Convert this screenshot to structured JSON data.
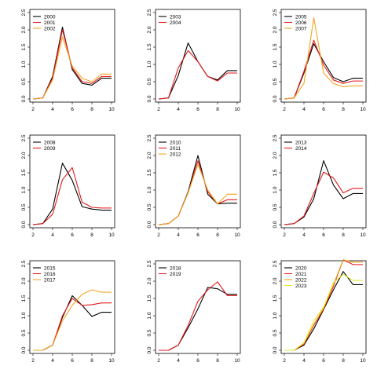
{
  "chart_data": [
    {
      "type": "line",
      "legend_position": "top-left",
      "xlim": [
        2,
        10
      ],
      "ylim": [
        0,
        2.5
      ],
      "x": [
        2,
        3,
        4,
        5,
        6,
        7,
        8,
        9,
        10
      ],
      "x_ticks": [
        "2",
        "4",
        "6",
        "8",
        "10"
      ],
      "y_ticks": [
        "0.0",
        "0.5",
        "1.0",
        "1.5",
        "2.0",
        "2.5"
      ],
      "series": [
        {
          "name": "2000",
          "color": "#000000",
          "values": [
            0,
            0.03,
            0.65,
            2.08,
            0.85,
            0.45,
            0.4,
            0.6,
            0.6
          ]
        },
        {
          "name": "2001",
          "color": "#e31a1c",
          "values": [
            0,
            0.03,
            0.6,
            2.0,
            0.9,
            0.5,
            0.45,
            0.65,
            0.65
          ]
        },
        {
          "name": "2002",
          "color": "#f5a623",
          "values": [
            0,
            0.03,
            0.55,
            1.8,
            0.95,
            0.6,
            0.5,
            0.72,
            0.72
          ]
        }
      ]
    },
    {
      "type": "line",
      "legend_position": "top-left",
      "xlim": [
        2,
        10
      ],
      "ylim": [
        0,
        2.5
      ],
      "x": [
        2,
        3,
        4,
        5,
        6,
        7,
        8,
        9,
        10
      ],
      "x_ticks": [
        "2",
        "4",
        "6",
        "8",
        "10"
      ],
      "y_ticks": [
        "0.0",
        "0.5",
        "1.0",
        "1.5",
        "2.0",
        "2.5"
      ],
      "series": [
        {
          "name": "2003",
          "color": "#000000",
          "values": [
            0,
            0.03,
            0.68,
            1.62,
            1.08,
            0.65,
            0.55,
            0.82,
            0.82
          ]
        },
        {
          "name": "2004",
          "color": "#e31a1c",
          "values": [
            0,
            0.03,
            0.9,
            1.4,
            1.08,
            0.65,
            0.52,
            0.75,
            0.75
          ]
        }
      ]
    },
    {
      "type": "line",
      "legend_position": "top-left",
      "xlim": [
        2,
        10
      ],
      "ylim": [
        0,
        2.5
      ],
      "x": [
        2,
        3,
        4,
        5,
        6,
        7,
        8,
        9,
        10
      ],
      "x_ticks": [
        "2",
        "4",
        "6",
        "8",
        "10"
      ],
      "y_ticks": [
        "0.0",
        "0.5",
        "1.0",
        "1.5",
        "2.0",
        "2.5"
      ],
      "series": [
        {
          "name": "2005",
          "color": "#000000",
          "values": [
            0,
            0.03,
            0.75,
            1.6,
            1.08,
            0.62,
            0.5,
            0.6,
            0.6
          ]
        },
        {
          "name": "2006",
          "color": "#e31a1c",
          "values": [
            0,
            0.03,
            0.8,
            1.7,
            0.98,
            0.55,
            0.45,
            0.52,
            0.52
          ]
        },
        {
          "name": "2007",
          "color": "#f5a623",
          "values": [
            0,
            0.03,
            0.45,
            2.35,
            0.75,
            0.45,
            0.35,
            0.38,
            0.38
          ]
        }
      ]
    },
    {
      "type": "line",
      "legend_position": "top-left",
      "xlim": [
        2,
        10
      ],
      "ylim": [
        0,
        2.5
      ],
      "x": [
        2,
        3,
        4,
        5,
        6,
        7,
        8,
        9,
        10
      ],
      "x_ticks": [
        "2",
        "4",
        "6",
        "8",
        "10"
      ],
      "y_ticks": [
        "0.0",
        "0.5",
        "1.0",
        "1.5",
        "2.0",
        "2.5"
      ],
      "series": [
        {
          "name": "2008",
          "color": "#000000",
          "values": [
            0,
            0.03,
            0.45,
            1.78,
            1.28,
            0.52,
            0.45,
            0.42,
            0.42
          ]
        },
        {
          "name": "2009",
          "color": "#e31a1c",
          "values": [
            0,
            0.03,
            0.3,
            1.3,
            1.65,
            0.65,
            0.5,
            0.48,
            0.48
          ]
        }
      ]
    },
    {
      "type": "line",
      "legend_position": "top-left",
      "xlim": [
        2,
        10
      ],
      "ylim": [
        0,
        2.5
      ],
      "x": [
        2,
        3,
        4,
        5,
        6,
        7,
        8,
        9,
        10
      ],
      "x_ticks": [
        "2",
        "4",
        "6",
        "8",
        "10"
      ],
      "y_ticks": [
        "0.0",
        "0.5",
        "1.0",
        "1.5",
        "2.0",
        "2.5"
      ],
      "series": [
        {
          "name": "2010",
          "color": "#000000",
          "values": [
            0,
            0.03,
            0.25,
            0.95,
            2.0,
            0.88,
            0.6,
            0.62,
            0.62
          ]
        },
        {
          "name": "2011",
          "color": "#e31a1c",
          "values": [
            0,
            0.03,
            0.25,
            0.92,
            1.85,
            0.95,
            0.6,
            0.72,
            0.72
          ]
        },
        {
          "name": "2012",
          "color": "#f5a623",
          "values": [
            0,
            0.03,
            0.25,
            0.92,
            1.75,
            1.0,
            0.6,
            0.88,
            0.88
          ]
        }
      ]
    },
    {
      "type": "line",
      "legend_position": "top-left",
      "xlim": [
        2,
        10
      ],
      "ylim": [
        0,
        2.5
      ],
      "x": [
        2,
        3,
        4,
        5,
        6,
        7,
        8,
        9,
        10
      ],
      "x_ticks": [
        "2",
        "4",
        "6",
        "8",
        "10"
      ],
      "y_ticks": [
        "0.0",
        "0.5",
        "1.0",
        "1.5",
        "2.0",
        "2.5"
      ],
      "series": [
        {
          "name": "2013",
          "color": "#000000",
          "values": [
            0,
            0.03,
            0.22,
            0.75,
            1.85,
            1.15,
            0.75,
            0.9,
            0.9
          ]
        },
        {
          "name": "2014",
          "color": "#e31a1c",
          "values": [
            0,
            0.03,
            0.25,
            0.9,
            1.52,
            1.35,
            0.92,
            1.05,
            1.05
          ]
        }
      ]
    },
    {
      "type": "line",
      "legend_position": "top-left",
      "xlim": [
        2,
        10
      ],
      "ylim": [
        0,
        2.5
      ],
      "x": [
        2,
        3,
        4,
        5,
        6,
        7,
        8,
        9,
        10
      ],
      "x_ticks": [
        "2",
        "4",
        "6",
        "8",
        "10"
      ],
      "y_ticks": [
        "0.0",
        "0.5",
        "1.0",
        "1.5",
        "2.0",
        "2.5"
      ],
      "series": [
        {
          "name": "2015",
          "color": "#000000",
          "values": [
            0,
            0.0,
            0.15,
            0.95,
            1.58,
            1.3,
            0.98,
            1.1,
            1.1
          ]
        },
        {
          "name": "2016",
          "color": "#e31a1c",
          "values": [
            0,
            0.0,
            0.15,
            1.0,
            1.5,
            1.3,
            1.32,
            1.37,
            1.37
          ]
        },
        {
          "name": "2017",
          "color": "#f5a623",
          "values": [
            0,
            0.0,
            0.15,
            0.85,
            1.3,
            1.62,
            1.75,
            1.68,
            1.68
          ]
        }
      ]
    },
    {
      "type": "line",
      "legend_position": "top-left",
      "xlim": [
        2,
        10
      ],
      "ylim": [
        0,
        2.5
      ],
      "x": [
        2,
        3,
        4,
        5,
        6,
        7,
        8,
        9,
        10
      ],
      "x_ticks": [
        "2",
        "4",
        "6",
        "8",
        "10"
      ],
      "y_ticks": [
        "0.0",
        "0.5",
        "1.0",
        "1.5",
        "2.0",
        "2.5"
      ],
      "series": [
        {
          "name": "2018",
          "color": "#000000",
          "values": [
            0,
            0.0,
            0.15,
            0.65,
            1.2,
            1.82,
            1.78,
            1.62,
            1.62
          ]
        },
        {
          "name": "2019",
          "color": "#e31a1c",
          "values": [
            0,
            0.0,
            0.15,
            0.72,
            1.42,
            1.75,
            1.98,
            1.58,
            1.58
          ]
        }
      ]
    },
    {
      "type": "line",
      "legend_position": "top-left",
      "xlim": [
        2,
        10
      ],
      "ylim": [
        0,
        2.5
      ],
      "x": [
        2,
        3,
        4,
        5,
        6,
        7,
        8,
        9,
        10
      ],
      "x_ticks": [
        "2",
        "4",
        "6",
        "8",
        "10"
      ],
      "y_ticks": [
        "0.0",
        "0.5",
        "1.0",
        "1.5",
        "2.0",
        "2.5"
      ],
      "series": [
        {
          "name": "2020",
          "color": "#000000",
          "values": [
            0,
            0.0,
            0.15,
            0.62,
            1.18,
            1.75,
            2.28,
            1.9,
            1.9
          ]
        },
        {
          "name": "2021",
          "color": "#e31a1c",
          "values": [
            0,
            0.0,
            0.18,
            0.72,
            1.2,
            1.85,
            2.62,
            2.48,
            2.48
          ]
        },
        {
          "name": "2022",
          "color": "#f5a623",
          "values": [
            0,
            0.0,
            0.2,
            0.75,
            1.22,
            1.9,
            2.62,
            2.55,
            2.55
          ]
        },
        {
          "name": "2023",
          "color": "#e5e830",
          "values": [
            0,
            0.0,
            0.22,
            0.85,
            1.25,
            1.95,
            2.2,
            2.02,
            2.02
          ]
        }
      ]
    }
  ]
}
